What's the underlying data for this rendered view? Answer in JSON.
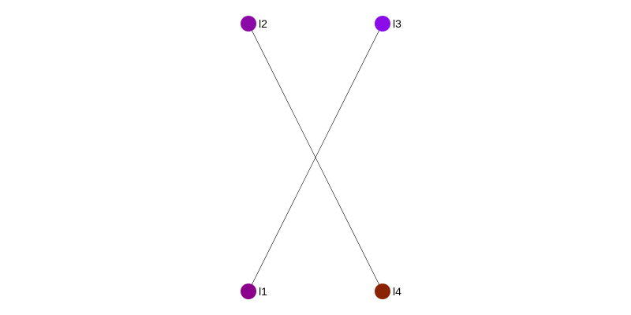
{
  "graph": {
    "nodes": [
      {
        "id": "l1",
        "label": "l1",
        "color": "#8b008b"
      },
      {
        "id": "l2",
        "label": "l2",
        "color": "#8b0aa5"
      },
      {
        "id": "l3",
        "label": "l3",
        "color": "#8a0ce8"
      },
      {
        "id": "l4",
        "label": "l4",
        "color": "#8b2200"
      }
    ],
    "edges": [
      {
        "from": "l2",
        "to": "l4"
      },
      {
        "from": "l3",
        "to": "l1"
      }
    ]
  }
}
